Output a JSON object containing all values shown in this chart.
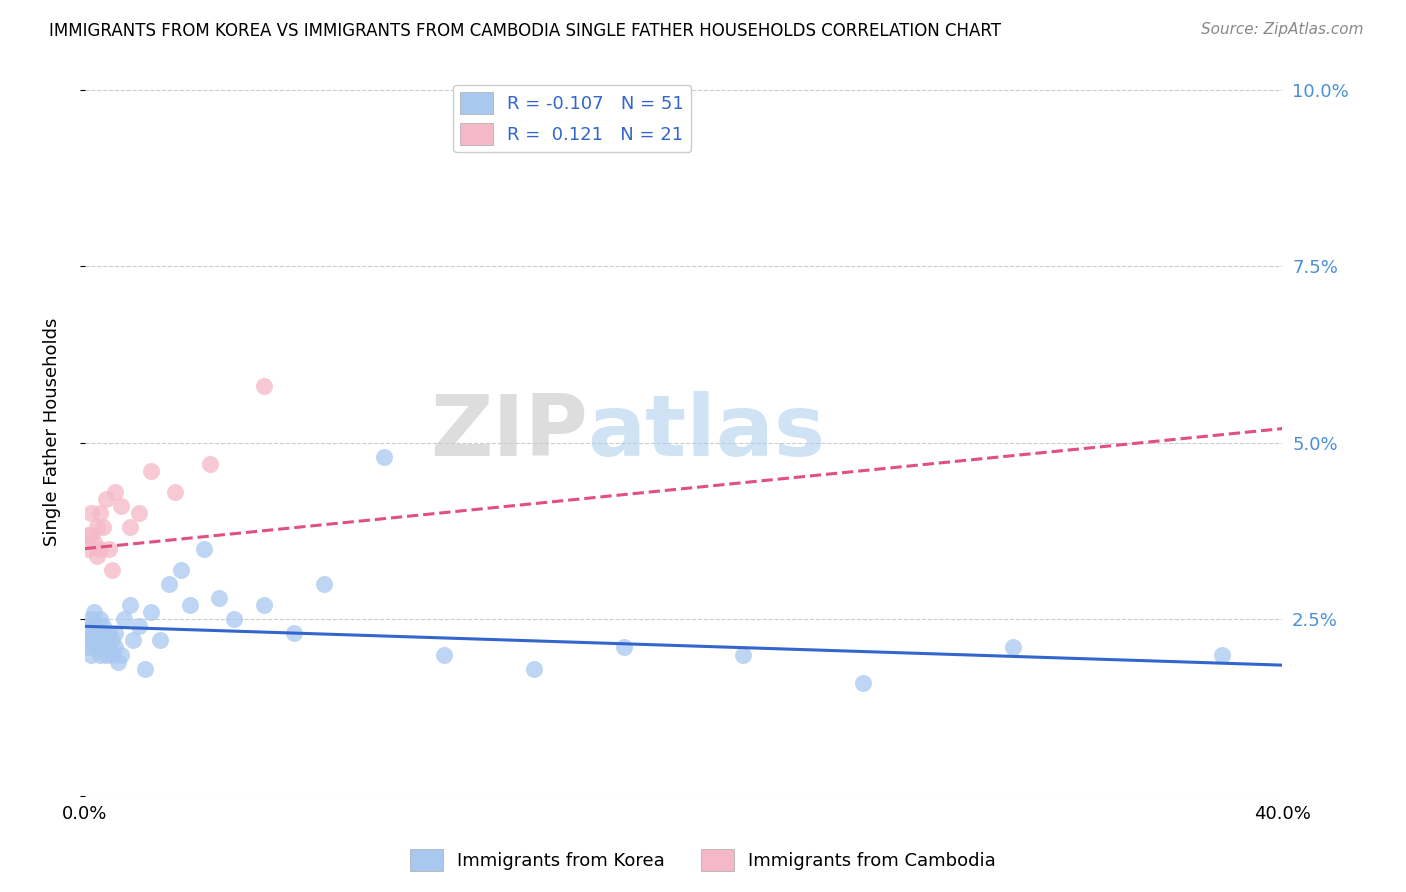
{
  "title": "IMMIGRANTS FROM KOREA VS IMMIGRANTS FROM CAMBODIA SINGLE FATHER HOUSEHOLDS CORRELATION CHART",
  "source": "Source: ZipAtlas.com",
  "ylabel": "Single Father Households",
  "yticks": [
    0.0,
    0.025,
    0.05,
    0.075,
    0.1
  ],
  "ytick_labels": [
    "",
    "2.5%",
    "5.0%",
    "7.5%",
    "10.0%"
  ],
  "xlim": [
    0.0,
    0.4
  ],
  "ylim": [
    0.0,
    0.103
  ],
  "watermark_zip": "ZIP",
  "watermark_atlas": "atlas",
  "korea_color": "#a8c8f0",
  "cambodia_color": "#f5b8c8",
  "korea_line_color": "#3366cc",
  "cambodia_line_color": "#e05080",
  "legend_text_color": "#3366cc",
  "right_axis_color": "#4a90d9",
  "korea_R": -0.107,
  "korea_N": 51,
  "cambodia_R": 0.121,
  "cambodia_N": 21,
  "korea_x": [
    0.001,
    0.001,
    0.001,
    0.002,
    0.002,
    0.002,
    0.003,
    0.003,
    0.003,
    0.004,
    0.004,
    0.005,
    0.005,
    0.005,
    0.006,
    0.006,
    0.006,
    0.007,
    0.007,
    0.008,
    0.008,
    0.009,
    0.009,
    0.01,
    0.01,
    0.011,
    0.012,
    0.013,
    0.015,
    0.016,
    0.018,
    0.02,
    0.022,
    0.025,
    0.028,
    0.032,
    0.035,
    0.04,
    0.045,
    0.05,
    0.06,
    0.07,
    0.08,
    0.1,
    0.12,
    0.15,
    0.18,
    0.22,
    0.26,
    0.31,
    0.38
  ],
  "korea_y": [
    0.022,
    0.024,
    0.021,
    0.025,
    0.023,
    0.02,
    0.026,
    0.022,
    0.024,
    0.021,
    0.023,
    0.025,
    0.022,
    0.02,
    0.024,
    0.022,
    0.023,
    0.02,
    0.022,
    0.023,
    0.021,
    0.022,
    0.02,
    0.021,
    0.023,
    0.019,
    0.02,
    0.025,
    0.027,
    0.022,
    0.024,
    0.018,
    0.026,
    0.022,
    0.03,
    0.032,
    0.027,
    0.035,
    0.028,
    0.025,
    0.027,
    0.023,
    0.03,
    0.048,
    0.02,
    0.018,
    0.021,
    0.02,
    0.016,
    0.021,
    0.02
  ],
  "cambodia_x": [
    0.001,
    0.001,
    0.002,
    0.002,
    0.003,
    0.004,
    0.004,
    0.005,
    0.005,
    0.006,
    0.007,
    0.008,
    0.009,
    0.01,
    0.012,
    0.015,
    0.018,
    0.022,
    0.03,
    0.042,
    0.06
  ],
  "cambodia_y": [
    0.035,
    0.037,
    0.04,
    0.037,
    0.036,
    0.038,
    0.034,
    0.04,
    0.035,
    0.038,
    0.042,
    0.035,
    0.032,
    0.043,
    0.041,
    0.038,
    0.04,
    0.046,
    0.043,
    0.047,
    0.058
  ],
  "korea_line_x": [
    0.0,
    0.4
  ],
  "korea_line_y": [
    0.024,
    0.0185
  ],
  "cambodia_line_x": [
    0.0,
    0.4
  ],
  "cambodia_line_y": [
    0.035,
    0.052
  ]
}
